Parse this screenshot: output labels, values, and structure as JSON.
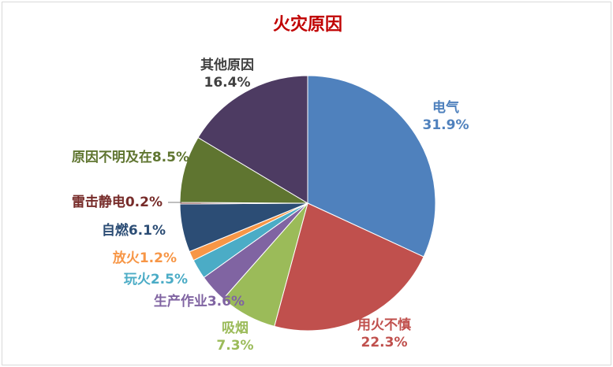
{
  "chart_data": {
    "type": "pie",
    "title": "火灾原因",
    "start": "top",
    "direction": "clockwise",
    "slices": [
      {
        "label": "电气",
        "value": 31.9,
        "text": "31.9%",
        "color": "#4F81BD"
      },
      {
        "label": "用火不慎",
        "value": 22.3,
        "text": "22.3%",
        "color": "#C0504D"
      },
      {
        "label": "吸烟",
        "value": 7.3,
        "text": "7.3%",
        "color": "#9BBB59"
      },
      {
        "label": "生产作业",
        "value": 3.6,
        "text": "3.6%",
        "color": "#8064A2"
      },
      {
        "label": "玩火",
        "value": 2.5,
        "text": "2.5%",
        "color": "#4BACC6"
      },
      {
        "label": "放火",
        "value": 1.2,
        "text": "1.2%",
        "color": "#F79646"
      },
      {
        "label": "自燃",
        "value": 6.1,
        "text": "6.1%",
        "color": "#2C4D75"
      },
      {
        "label": "雷击静电",
        "value": 0.2,
        "text": "0.2%",
        "color": "#772C2A"
      },
      {
        "label": "原因不明及在",
        "value": 8.5,
        "text": "8.5%",
        "color": "#5F7530"
      },
      {
        "label": "其他原因",
        "value": 16.4,
        "text": "16.4%",
        "color": "#4D3B62"
      }
    ]
  }
}
